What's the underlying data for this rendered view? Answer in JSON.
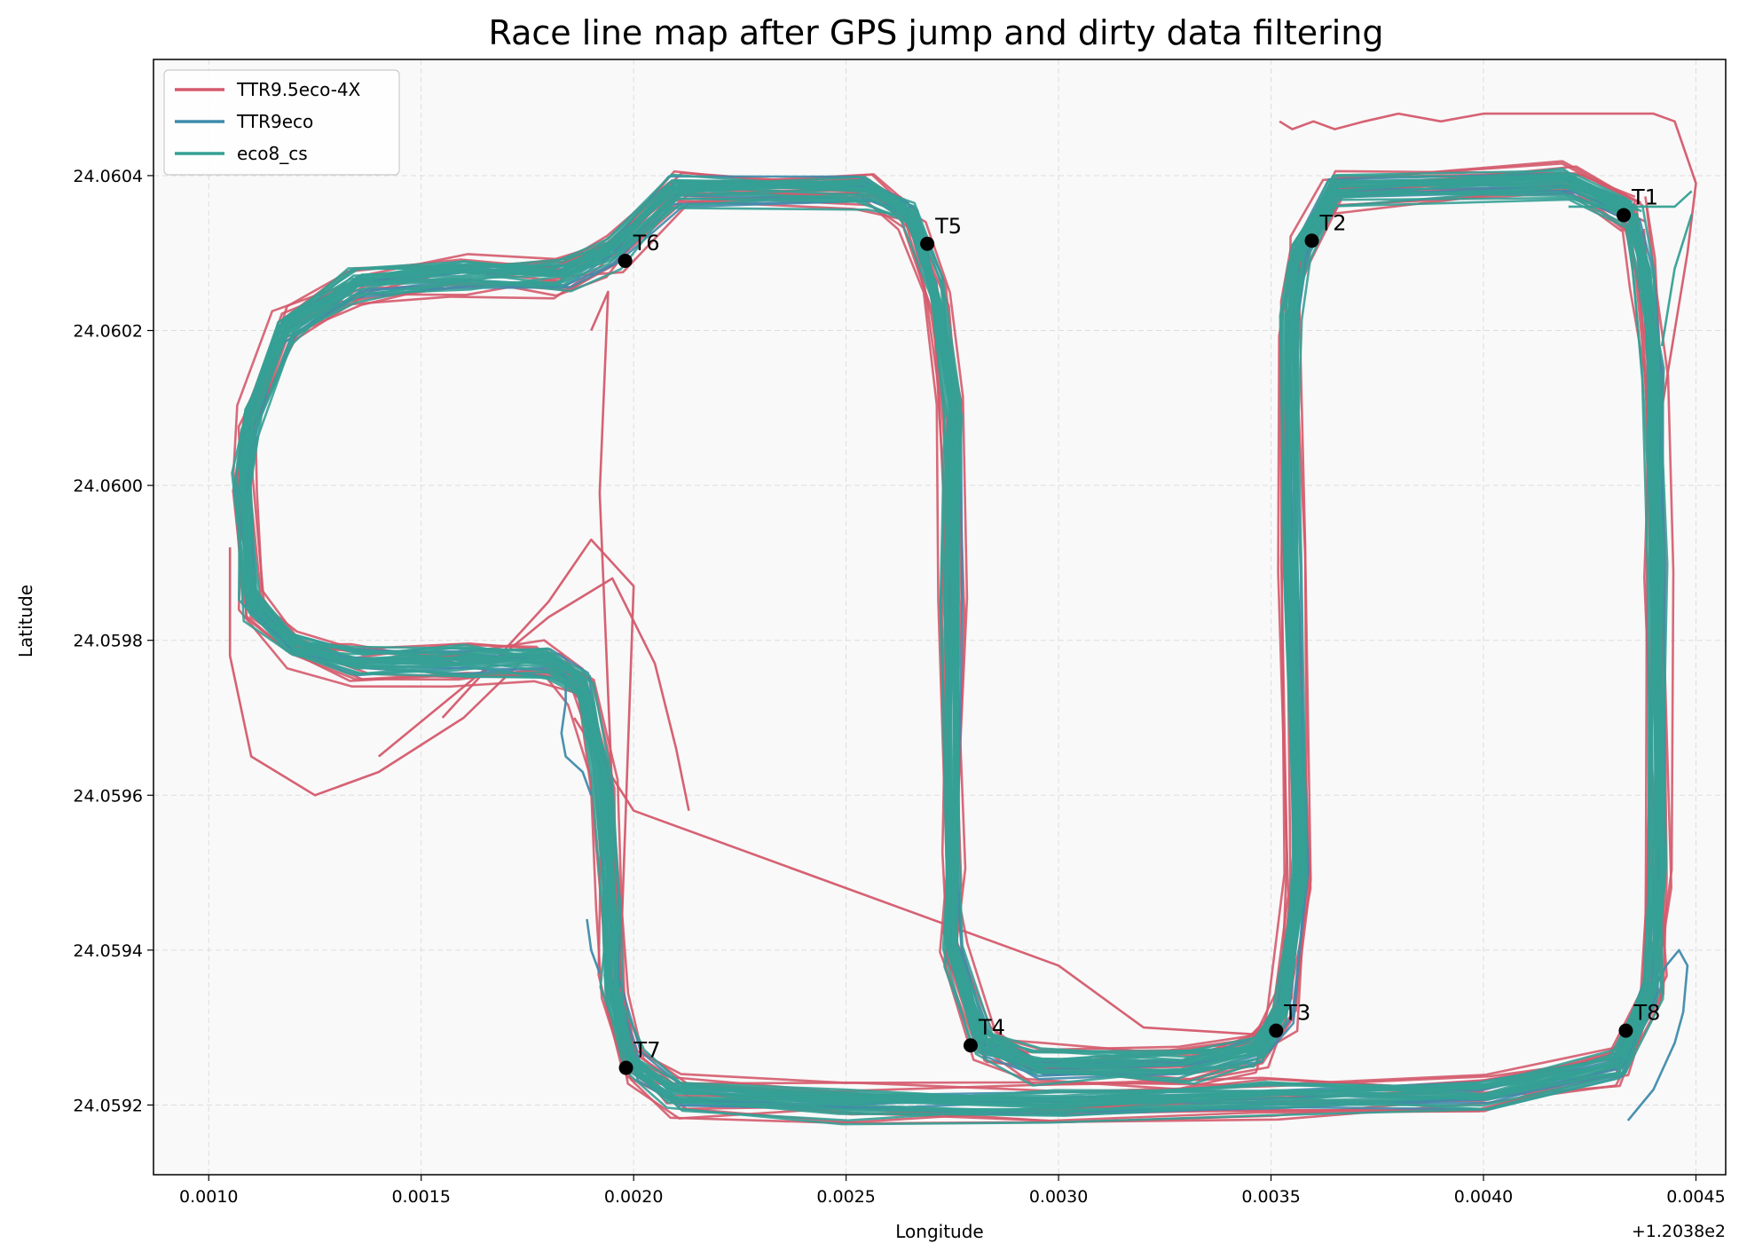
{
  "chart_data": {
    "type": "line",
    "title": "Race line map after GPS jump and dirty data filtering",
    "xlabel": "Longitude",
    "ylabel": "Latitude",
    "x_offset_label": "+1.2038e2",
    "xlim": [
      0.00087,
      0.00457
    ],
    "ylim": [
      24.05911,
      24.06055
    ],
    "x_ticks": [
      0.001,
      0.0015,
      0.002,
      0.0025,
      0.003,
      0.0035,
      0.004,
      0.0045
    ],
    "x_tick_labels": [
      "0.0010",
      "0.0015",
      "0.0020",
      "0.0025",
      "0.0030",
      "0.0035",
      "0.0040",
      "0.0045"
    ],
    "y_ticks": [
      24.0592,
      24.0594,
      24.0596,
      24.0598,
      24.06,
      24.0602,
      24.0604
    ],
    "y_tick_labels": [
      "24.0592",
      "24.0594",
      "24.0596",
      "24.0598",
      "24.0600",
      "24.0602",
      "24.0604"
    ],
    "grid": true,
    "legend_position": "top-left",
    "series": [
      {
        "name": "TTR9.5eco-4X",
        "color": "#d45a6b"
      },
      {
        "name": "TTR9eco",
        "color": "#3f8bab"
      },
      {
        "name": "eco8_cs",
        "color": "#35a095"
      }
    ],
    "main_lap": [
      [
        0.00435,
        24.06035
      ],
      [
        0.0042,
        24.06039
      ],
      [
        0.00365,
        24.06038
      ],
      [
        0.00357,
        24.0603
      ],
      [
        0.00355,
        24.06022
      ],
      [
        0.00355,
        24.0599
      ],
      [
        0.00357,
        24.0595
      ],
      [
        0.00353,
        24.05932
      ],
      [
        0.00347,
        24.05927
      ],
      [
        0.0033,
        24.05925
      ],
      [
        0.00295,
        24.05925
      ],
      [
        0.00282,
        24.05928
      ],
      [
        0.00275,
        24.0594
      ],
      [
        0.00275,
        24.0595
      ],
      [
        0.00275,
        24.05985
      ],
      [
        0.00275,
        24.0601
      ],
      [
        0.00271,
        24.06025
      ],
      [
        0.00265,
        24.06035
      ],
      [
        0.00255,
        24.06038
      ],
      [
        0.0021,
        24.06038
      ],
      [
        0.00195,
        24.0603
      ],
      [
        0.00183,
        24.06027
      ],
      [
        0.0016,
        24.06027
      ],
      [
        0.00135,
        24.06026
      ],
      [
        0.00118,
        24.0602
      ],
      [
        0.0011,
        24.06008
      ],
      [
        0.00108,
        24.06
      ],
      [
        0.0011,
        24.05985
      ],
      [
        0.0012,
        24.05979
      ],
      [
        0.00135,
        24.05977
      ],
      [
        0.0016,
        24.05977
      ],
      [
        0.0018,
        24.05977
      ],
      [
        0.00188,
        24.05974
      ],
      [
        0.00193,
        24.05962
      ],
      [
        0.00195,
        24.05945
      ],
      [
        0.00195,
        24.05935
      ],
      [
        0.002,
        24.05925
      ],
      [
        0.0021,
        24.05921
      ],
      [
        0.0025,
        24.0592
      ],
      [
        0.003,
        24.0592
      ],
      [
        0.0035,
        24.05921
      ],
      [
        0.004,
        24.05921
      ],
      [
        0.00432,
        24.05925
      ],
      [
        0.0044,
        24.05935
      ],
      [
        0.00441,
        24.0595
      ],
      [
        0.00441,
        24.0599
      ],
      [
        0.0044,
        24.06015
      ],
      [
        0.00438,
        24.06027
      ],
      [
        0.00435,
        24.06035
      ]
    ],
    "ttr95_extra_paths": [
      [
        [
          0.00352,
          24.06047
        ],
        [
          0.00355,
          24.06046
        ],
        [
          0.0036,
          24.06047
        ],
        [
          0.00365,
          24.06046
        ],
        [
          0.00372,
          24.06047
        ],
        [
          0.0038,
          24.06048
        ],
        [
          0.0039,
          24.06047
        ],
        [
          0.004,
          24.06048
        ],
        [
          0.0041,
          24.06048
        ],
        [
          0.0042,
          24.06048
        ],
        [
          0.00428,
          24.06048
        ],
        [
          0.0044,
          24.06048
        ],
        [
          0.00445,
          24.06047
        ],
        [
          0.0045,
          24.06039
        ],
        [
          0.00448,
          24.0603
        ],
        [
          0.00442,
          24.0601
        ]
      ],
      [
        [
          0.0019,
          24.0602
        ],
        [
          0.00194,
          24.06025
        ],
        [
          0.00192,
          24.05999
        ],
        [
          0.00195,
          24.0596
        ],
        [
          0.00197,
          24.05935
        ]
      ],
      [
        [
          0.00186,
          24.0597
        ],
        [
          0.002,
          24.05958
        ],
        [
          0.003,
          24.05938
        ],
        [
          0.0032,
          24.0593
        ],
        [
          0.0035,
          24.05929
        ]
      ],
      [
        [
          0.00155,
          24.0597
        ],
        [
          0.0018,
          24.05985
        ],
        [
          0.0019,
          24.05993
        ],
        [
          0.002,
          24.05987
        ],
        [
          0.00197,
          24.0594
        ]
      ],
      [
        [
          0.0014,
          24.05965
        ],
        [
          0.0018,
          24.05983
        ],
        [
          0.00195,
          24.05988
        ],
        [
          0.00205,
          24.05977
        ],
        [
          0.0021,
          24.05966
        ],
        [
          0.00213,
          24.05958
        ]
      ],
      [
        [
          0.00105,
          24.05992
        ],
        [
          0.00105,
          24.05978
        ],
        [
          0.0011,
          24.05965
        ],
        [
          0.00125,
          24.0596
        ],
        [
          0.0014,
          24.05963
        ],
        [
          0.0016,
          24.0597
        ],
        [
          0.00175,
          24.05978
        ]
      ]
    ],
    "ttr9eco_extra_paths": [
      [
        [
          0.00434,
          24.05918
        ],
        [
          0.0044,
          24.05922
        ],
        [
          0.00445,
          24.05928
        ],
        [
          0.00447,
          24.05932
        ],
        [
          0.00448,
          24.05938
        ],
        [
          0.00446,
          24.0594
        ],
        [
          0.00443,
          24.05938
        ],
        [
          0.0044,
          24.05935
        ]
      ],
      [
        [
          0.00184,
          24.05976
        ],
        [
          0.00184,
          24.05972
        ],
        [
          0.00183,
          24.05968
        ],
        [
          0.00184,
          24.05965
        ],
        [
          0.00188,
          24.05963
        ],
        [
          0.0019,
          24.0596
        ]
      ],
      [
        [
          0.00189,
          24.05944
        ],
        [
          0.0019,
          24.0594
        ],
        [
          0.00192,
          24.05937
        ]
      ]
    ],
    "eco8_extra_paths": [
      [
        [
          0.0042,
          24.06036
        ],
        [
          0.00445,
          24.06036
        ],
        [
          0.00449,
          24.06038
        ]
      ],
      [
        [
          0.00442,
          24.06018
        ],
        [
          0.00445,
          24.06028
        ],
        [
          0.00449,
          24.06035
        ]
      ]
    ],
    "turns": [
      {
        "label": "T1",
        "lon": 0.00433,
        "lat": 24.060349
      },
      {
        "label": "T2",
        "lon": 0.003596,
        "lat": 24.060316
      },
      {
        "label": "T3",
        "lon": 0.003512,
        "lat": 24.059296
      },
      {
        "label": "T4",
        "lon": 0.002793,
        "lat": 24.059277
      },
      {
        "label": "T5",
        "lon": 0.002691,
        "lat": 24.060312
      },
      {
        "label": "T6",
        "lon": 0.00198,
        "lat": 24.06029
      },
      {
        "label": "T7",
        "lon": 0.001982,
        "lat": 24.059248
      },
      {
        "label": "T8",
        "lon": 0.004335,
        "lat": 24.059296
      }
    ]
  }
}
